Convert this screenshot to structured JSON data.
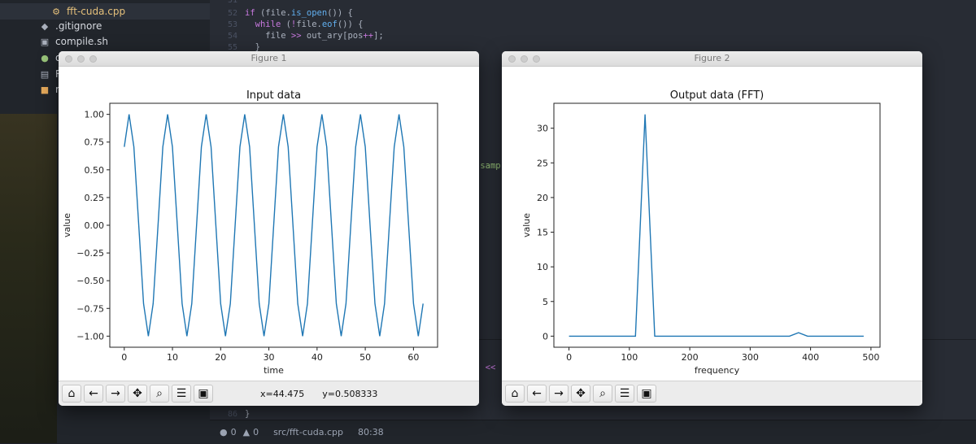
{
  "sidebar": {
    "items": [
      {
        "label": "fft-cuda.cpp",
        "icon": "cpp-file-icon"
      },
      {
        "label": ".gitignore",
        "icon": "git-icon"
      },
      {
        "label": "compile.sh",
        "icon": "terminal-icon"
      },
      {
        "label": "di",
        "icon": "python-icon"
      },
      {
        "label": "RE",
        "icon": "book-icon"
      },
      {
        "label": "ru",
        "icon": "shell-icon"
      }
    ]
  },
  "editor": {
    "lines": [
      {
        "num": "51",
        "code": ""
      },
      {
        "num": "52",
        "code": "if (file.is_open()) {"
      },
      {
        "num": "53",
        "code": "  while (!file.eof()) {"
      },
      {
        "num": "54",
        "code": "    file >> out_ary[pos++];"
      },
      {
        "num": "55",
        "code": "  }"
      }
    ],
    "fragment_samp": "[samp",
    "fragment_shift": "\" <<",
    "last_line_num": "86",
    "last_line_code": "}"
  },
  "statusbar": {
    "errors": "0",
    "warnings": "0",
    "file": "src/fft-cuda.cpp",
    "cursor": "80:38"
  },
  "figure1": {
    "title": "Figure 1",
    "coords_x": "x=44.475",
    "coords_y": "y=0.508333"
  },
  "figure2": {
    "title": "Figure 2"
  },
  "toolbar_icons": [
    "home-icon",
    "back-icon",
    "forward-icon",
    "pan-icon",
    "zoom-icon",
    "configure-icon",
    "save-icon"
  ],
  "chart_data": [
    {
      "type": "line",
      "title": "Input data",
      "xlabel": "time",
      "ylabel": "value",
      "xlim": [
        -3,
        65
      ],
      "ylim": [
        -1.1,
        1.1
      ],
      "xticks": [
        0,
        10,
        20,
        30,
        40,
        50,
        60
      ],
      "yticks": [
        1.0,
        0.75,
        0.5,
        0.25,
        0.0,
        -0.25,
        -0.5,
        -0.75,
        -1.0
      ],
      "ytick_labels": [
        "1.00",
        "0.75",
        "0.50",
        "0.25",
        "0.00",
        "−0.25",
        "−0.50",
        "−0.75",
        "−1.00"
      ],
      "x": [
        0,
        1,
        2,
        3,
        4,
        5,
        6,
        7,
        8,
        9,
        10,
        11,
        12,
        13,
        14,
        15,
        16,
        17,
        18,
        19,
        20,
        21,
        22,
        23,
        24,
        25,
        26,
        27,
        28,
        29,
        30,
        31,
        32,
        33,
        34,
        35,
        36,
        37,
        38,
        39,
        40,
        41,
        42,
        43,
        44,
        45,
        46,
        47,
        48,
        49,
        50,
        51,
        52,
        53,
        54,
        55,
        56,
        57,
        58,
        59,
        60,
        61,
        62
      ],
      "y": [
        0.707,
        1.0,
        0.707,
        0.0,
        -0.707,
        -1.0,
        -0.707,
        0.0,
        0.707,
        1.0,
        0.707,
        0.0,
        -0.707,
        -1.0,
        -0.707,
        0.0,
        0.707,
        1.0,
        0.707,
        0.0,
        -0.707,
        -1.0,
        -0.707,
        0.0,
        0.707,
        1.0,
        0.707,
        0.0,
        -0.707,
        -1.0,
        -0.707,
        0.0,
        0.707,
        1.0,
        0.707,
        0.0,
        -0.707,
        -1.0,
        -0.707,
        0.0,
        0.707,
        1.0,
        0.707,
        0.0,
        -0.707,
        -1.0,
        -0.707,
        0.0,
        0.707,
        1.0,
        0.707,
        0.0,
        -0.707,
        -1.0,
        -0.707,
        0.0,
        0.707,
        1.0,
        0.707,
        0.0,
        -0.707,
        -1.0,
        -0.707
      ],
      "color": "#1f77b4"
    },
    {
      "type": "line",
      "title": "Output data (FFT)",
      "xlabel": "frequency",
      "ylabel": "value",
      "xlim": [
        -25,
        515
      ],
      "ylim": [
        -1.6,
        33.6
      ],
      "xticks": [
        0,
        100,
        200,
        300,
        400,
        500
      ],
      "yticks": [
        0,
        5,
        10,
        15,
        20,
        25,
        30
      ],
      "ytick_labels": [
        "0",
        "5",
        "10",
        "15",
        "20",
        "25",
        "30"
      ],
      "x": [
        0,
        110,
        126,
        142,
        365,
        380,
        395,
        488
      ],
      "y": [
        0,
        0,
        32,
        0,
        0,
        0.5,
        0,
        0
      ],
      "color": "#1f77b4"
    }
  ]
}
